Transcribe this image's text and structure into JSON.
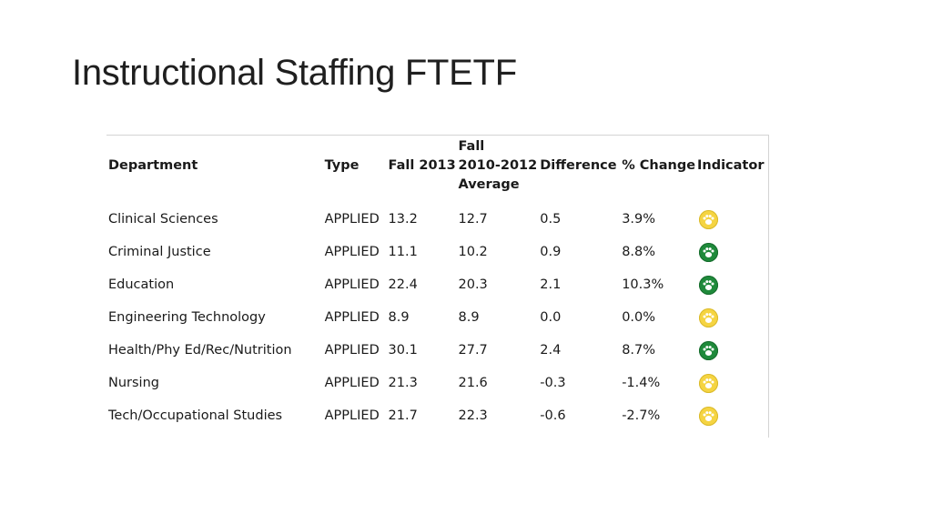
{
  "title": "Instructional Staffing FTETF",
  "colors": {
    "indicator_yellow": "#f5d442",
    "indicator_green": "#1f8a3b"
  },
  "table": {
    "headers": {
      "department": "Department",
      "type": "Type",
      "fall2013": "Fall 2013",
      "average_l1": "Fall",
      "average_l2": "2010-2012",
      "average_l3": "Average",
      "difference": "Difference",
      "pct_change": "% Change",
      "indicator": "Indicator"
    },
    "rows": [
      {
        "department": "Clinical Sciences",
        "type": "APPLIED",
        "fall2013": "13.2",
        "average": "12.7",
        "difference": "0.5",
        "pct_change": "3.9%",
        "indicator": "yellow"
      },
      {
        "department": "Criminal Justice",
        "type": "APPLIED",
        "fall2013": "11.1",
        "average": "10.2",
        "difference": "0.9",
        "pct_change": "8.8%",
        "indicator": "green"
      },
      {
        "department": "Education",
        "type": "APPLIED",
        "fall2013": "22.4",
        "average": "20.3",
        "difference": "2.1",
        "pct_change": "10.3%",
        "indicator": "green"
      },
      {
        "department": "Engineering Technology",
        "type": "APPLIED",
        "fall2013": "8.9",
        "average": "8.9",
        "difference": "0.0",
        "pct_change": "0.0%",
        "indicator": "yellow"
      },
      {
        "department": "Health/Phy Ed/Rec/Nutrition",
        "type": "APPLIED",
        "fall2013": "30.1",
        "average": "27.7",
        "difference": "2.4",
        "pct_change": "8.7%",
        "indicator": "green"
      },
      {
        "department": "Nursing",
        "type": "APPLIED",
        "fall2013": "21.3",
        "average": "21.6",
        "difference": "-0.3",
        "pct_change": "-1.4%",
        "indicator": "yellow"
      },
      {
        "department": "Tech/Occupational Studies",
        "type": "APPLIED",
        "fall2013": "21.7",
        "average": "22.3",
        "difference": "-0.6",
        "pct_change": "-2.7%",
        "indicator": "yellow"
      }
    ]
  }
}
